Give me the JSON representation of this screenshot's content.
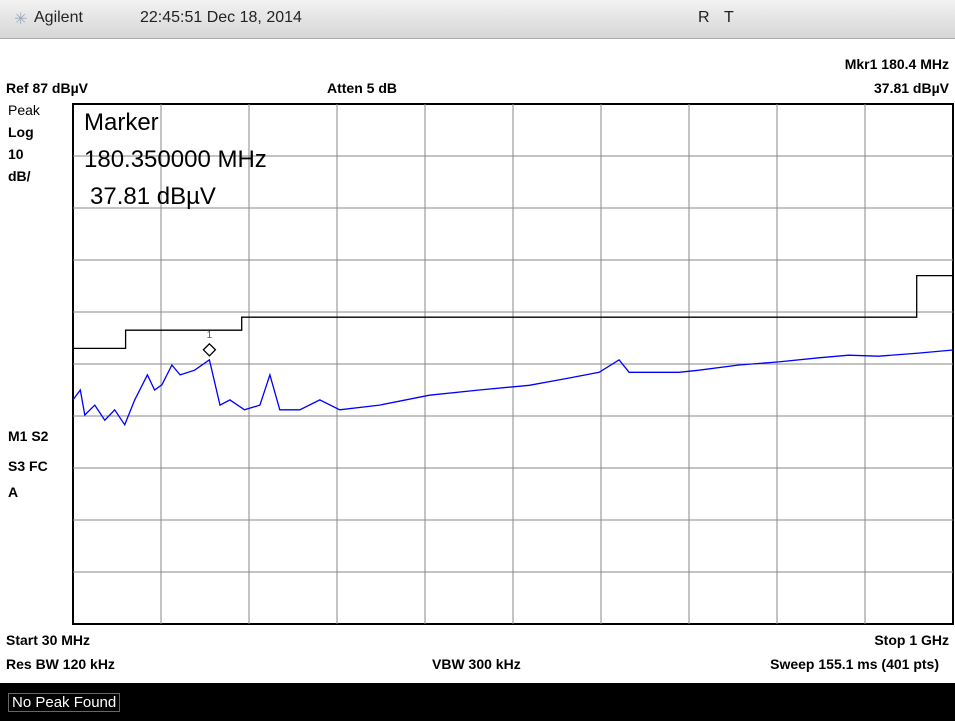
{
  "header": {
    "brand": "Agilent",
    "datetime": "22:45:51  Dec 18, 2014",
    "flag1": "R",
    "flag2": "T"
  },
  "settings": {
    "marker_readout": "Mkr1  180.4 MHz",
    "marker_level": "37.81 dBµV",
    "ref": "Ref 87 dBµV",
    "atten": "Atten 5 dB",
    "detector": "Peak",
    "scale": "Log",
    "scale_value": "10",
    "scale_unit": "dB/",
    "flags1": "M1  S2",
    "flags2": "S3  FC",
    "flags3": "A",
    "start": "Start 30 MHz",
    "stop": "Stop 1 GHz",
    "rbw": "Res BW 120 kHz",
    "vbw": "VBW 300 kHz",
    "sweep": "Sweep 155.1 ms (401 pts)"
  },
  "marker_box": {
    "title": "Marker",
    "frequency": "180.350000 MHz",
    "level": "37.81 dBµV"
  },
  "status": "No Peak Found",
  "chart_data": {
    "type": "line",
    "xlim": [
      30,
      1000
    ],
    "ylim": [
      -13,
      87
    ],
    "series": [
      {
        "color": "#0000ff",
        "x": [
          30,
          38,
          43,
          54,
          65,
          76,
          87,
          98,
          112,
          120,
          128,
          139,
          148,
          164,
          180.35,
          192,
          203,
          219,
          236,
          247,
          258,
          280,
          302,
          324,
          368,
          423,
          478,
          533,
          577,
          610,
          632,
          643,
          698,
          720,
          764,
          808,
          852,
          885,
          918,
          962,
          1000
        ],
        "values": [
          30.1,
          32.0,
          27.2,
          29.1,
          26.2,
          28.2,
          25.3,
          30.1,
          34.9,
          32.0,
          33.0,
          36.8,
          34.9,
          35.8,
          37.81,
          29.1,
          30.1,
          28.2,
          29.1,
          34.9,
          28.2,
          28.2,
          30.1,
          28.2,
          29.1,
          31.0,
          32.0,
          32.9,
          34.3,
          35.4,
          37.8,
          35.4,
          35.4,
          35.8,
          36.8,
          37.4,
          38.2,
          38.7,
          38.5,
          39.1,
          39.7
        ]
      },
      {
        "color": "#000000",
        "x": [
          30,
          88,
          88,
          216,
          216,
          960,
          960,
          1000
        ],
        "values": [
          40,
          40,
          43.5,
          43.5,
          46,
          46,
          54,
          54
        ]
      }
    ],
    "marker": {
      "x": 180.35,
      "y": 37.81,
      "label": "1"
    }
  }
}
